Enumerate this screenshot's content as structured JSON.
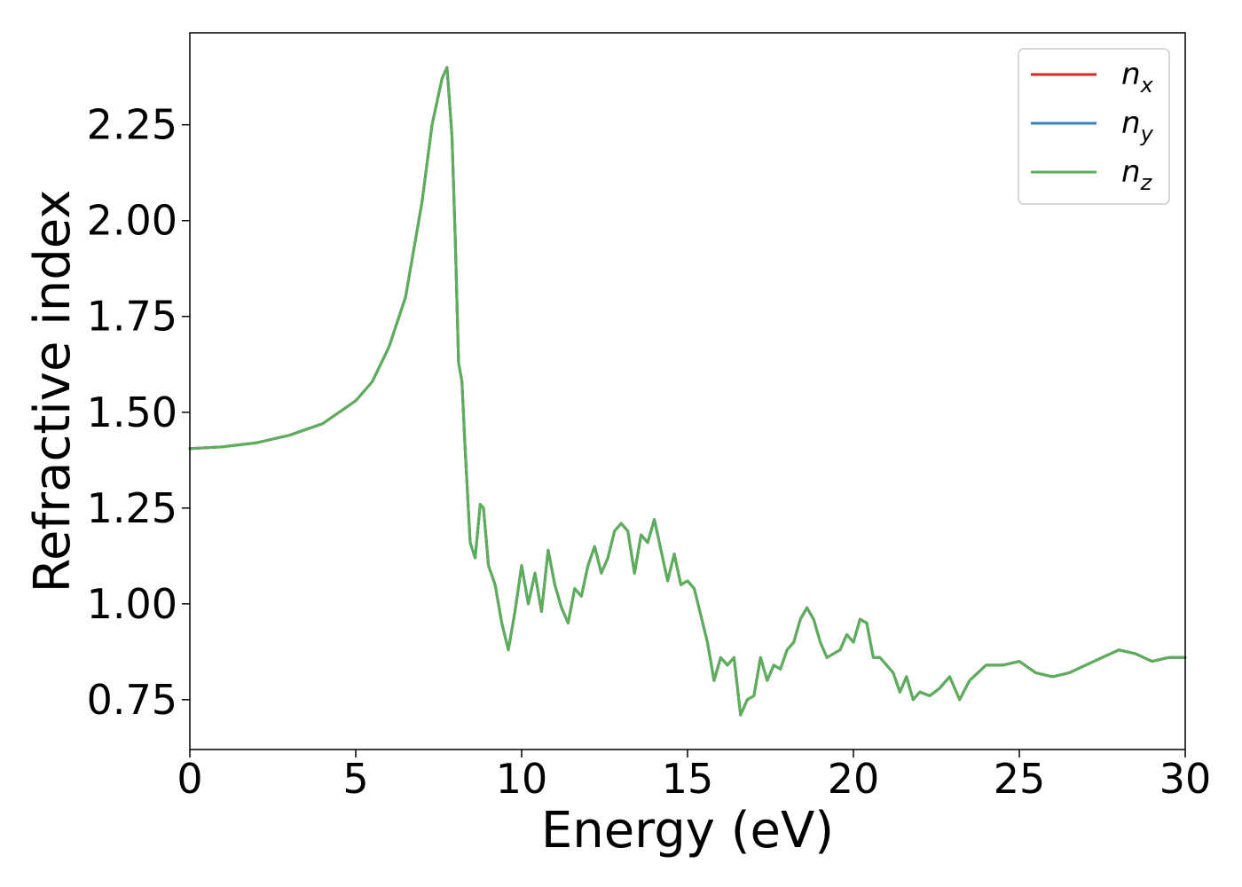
{
  "chart_data": {
    "type": "line",
    "xlabel": "Energy (eV)",
    "ylabel": "Refractive index",
    "xlim": [
      0,
      30
    ],
    "ylim": [
      0.62,
      2.49
    ],
    "xticks": [
      "0",
      "5",
      "10",
      "15",
      "20",
      "25",
      "30"
    ],
    "yticks": [
      "0.75",
      "1.00",
      "1.25",
      "1.50",
      "1.75",
      "2.00",
      "2.25"
    ],
    "grid": false,
    "legend_position": "top-right",
    "series": [
      {
        "name": "n",
        "subscript": "x",
        "color": "#d62728"
      },
      {
        "name": "n",
        "subscript": "y",
        "color": "#3a7fc0"
      },
      {
        "name": "n",
        "subscript": "z",
        "color": "#5aaf58"
      }
    ],
    "x": [
      0,
      1,
      2,
      3,
      4,
      5,
      5.5,
      6,
      6.5,
      7,
      7.3,
      7.6,
      7.75,
      7.9,
      8.0,
      8.1,
      8.2,
      8.3,
      8.45,
      8.6,
      8.75,
      8.85,
      9.0,
      9.2,
      9.4,
      9.6,
      9.8,
      10.0,
      10.2,
      10.4,
      10.6,
      10.8,
      11.0,
      11.2,
      11.4,
      11.6,
      11.8,
      12.0,
      12.2,
      12.4,
      12.6,
      12.8,
      13.0,
      13.2,
      13.4,
      13.6,
      13.8,
      14.0,
      14.2,
      14.4,
      14.6,
      14.8,
      15.0,
      15.2,
      15.4,
      15.6,
      15.8,
      16.0,
      16.2,
      16.4,
      16.6,
      16.8,
      17.0,
      17.2,
      17.4,
      17.6,
      17.8,
      18.0,
      18.2,
      18.4,
      18.6,
      18.8,
      19.0,
      19.2,
      19.4,
      19.6,
      19.8,
      20.0,
      20.2,
      20.4,
      20.6,
      20.8,
      21.0,
      21.2,
      21.4,
      21.6,
      21.8,
      22.0,
      22.3,
      22.6,
      22.9,
      23.2,
      23.5,
      24.0,
      24.5,
      25.0,
      25.5,
      26.0,
      26.5,
      27.0,
      27.5,
      28.0,
      28.5,
      29.0,
      29.5,
      30.0
    ],
    "values": [
      1.405,
      1.41,
      1.42,
      1.44,
      1.47,
      1.53,
      1.58,
      1.67,
      1.8,
      2.05,
      2.25,
      2.37,
      2.4,
      2.22,
      1.95,
      1.63,
      1.58,
      1.4,
      1.16,
      1.12,
      1.26,
      1.25,
      1.1,
      1.05,
      0.95,
      0.88,
      0.98,
      1.1,
      1.0,
      1.08,
      0.98,
      1.14,
      1.05,
      0.99,
      0.95,
      1.04,
      1.02,
      1.1,
      1.15,
      1.08,
      1.12,
      1.19,
      1.21,
      1.19,
      1.08,
      1.18,
      1.16,
      1.22,
      1.14,
      1.06,
      1.13,
      1.05,
      1.06,
      1.04,
      0.97,
      0.9,
      0.8,
      0.86,
      0.84,
      0.86,
      0.71,
      0.75,
      0.76,
      0.86,
      0.8,
      0.84,
      0.83,
      0.88,
      0.9,
      0.96,
      0.99,
      0.96,
      0.9,
      0.86,
      0.87,
      0.88,
      0.92,
      0.9,
      0.96,
      0.95,
      0.86,
      0.86,
      0.84,
      0.82,
      0.77,
      0.81,
      0.75,
      0.77,
      0.76,
      0.78,
      0.81,
      0.75,
      0.8,
      0.84,
      0.84,
      0.85,
      0.82,
      0.81,
      0.82,
      0.84,
      0.86,
      0.88,
      0.87,
      0.85,
      0.86,
      0.86
    ]
  }
}
